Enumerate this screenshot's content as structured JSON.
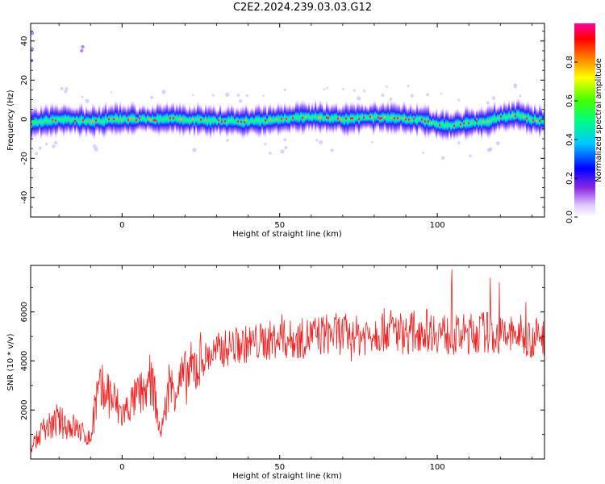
{
  "title": "C2E2.2024.239.03.03.G12",
  "chart_data": [
    {
      "type": "heatmap",
      "xlabel": "Height of straight line (km)",
      "ylabel": "Frequency (Hz)",
      "xlim": [
        -29,
        134
      ],
      "ylim": [
        -50,
        49
      ],
      "x_ticks": [
        0,
        50,
        100
      ],
      "y_ticks": [
        -40,
        -20,
        0,
        20,
        40
      ],
      "colorbar": {
        "label": "Normalized spectral amplitude",
        "range": [
          0,
          1
        ],
        "ticks": [
          "0.0",
          "0.2",
          "0.4",
          "0.6",
          "0.8"
        ]
      },
      "ridge": {
        "x": [
          -29,
          -20,
          -10,
          0,
          10,
          20,
          30,
          40,
          45,
          50,
          55,
          60,
          70,
          80,
          90,
          95,
          100,
          105,
          110,
          115,
          120,
          125,
          130,
          134
        ],
        "freq": [
          -2,
          0,
          -1,
          0,
          0,
          0,
          -1,
          -1,
          -1,
          0,
          1,
          1,
          0,
          1,
          0,
          0,
          -3,
          -3,
          -2,
          -1,
          1,
          2,
          0,
          -1
        ]
      }
    },
    {
      "type": "line",
      "xlabel": "Height of straight line (km)",
      "ylabel": "SNR (10 * v/v)",
      "xlim": [
        -29,
        134
      ],
      "ylim": [
        0,
        7900
      ],
      "x_ticks": [
        0,
        50,
        100
      ],
      "y_ticks": [
        2000,
        4000,
        6000
      ],
      "series": [
        {
          "color": "#ee2222",
          "x": [
            -29,
            -25,
            -20,
            -15,
            -10,
            -8,
            -5,
            0,
            5,
            10,
            12,
            15,
            20,
            25,
            30,
            35,
            40,
            45,
            50,
            55,
            60,
            65,
            70,
            75,
            80,
            85,
            90,
            95,
            100,
            105,
            110,
            115,
            120,
            125,
            130,
            134
          ],
          "y": [
            400,
            1200,
            1500,
            1300,
            800,
            2500,
            2800,
            1800,
            2600,
            3000,
            1000,
            2800,
            3300,
            4000,
            4400,
            4600,
            4700,
            4800,
            4900,
            4850,
            5000,
            5100,
            5100,
            5000,
            5200,
            5300,
            5100,
            5300,
            5200,
            5000,
            5100,
            5200,
            5000,
            5100,
            4900,
            5000
          ]
        }
      ]
    }
  ]
}
